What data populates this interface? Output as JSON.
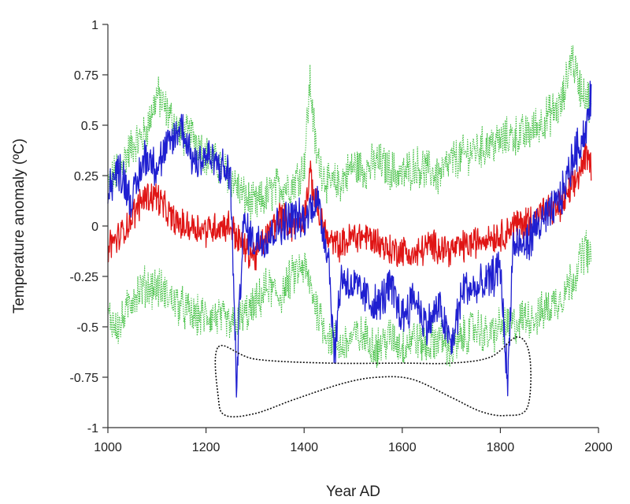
{
  "chart_data": {
    "type": "line",
    "title": "",
    "xlabel": "Year AD",
    "ylabel": "Temperature anomaly (ºC)",
    "xlim": [
      1000,
      2000
    ],
    "ylim": [
      -1,
      1
    ],
    "xticks": [
      1000,
      1200,
      1400,
      1600,
      1800,
      2000
    ],
    "xtick_labels": [
      "1000",
      "1200",
      "1400",
      "1600",
      "1800",
      "2000"
    ],
    "yticks": [
      1,
      0.75,
      0.5,
      0.25,
      0,
      -0.25,
      -0.5,
      -0.75,
      -1
    ],
    "ytick_labels": [
      "1",
      "0.75",
      "0.5",
      "0.25",
      "0",
      "-0.25",
      "-0.5",
      "-0.75",
      "-1"
    ],
    "grid": false,
    "legend": "none",
    "colors": {
      "blue": "#1f1fd0",
      "red": "#e01515",
      "green": "#44c044",
      "outline": "#111111"
    },
    "series": [
      {
        "color": "blue",
        "style": "solid",
        "x": [
          1000,
          1025,
          1050,
          1075,
          1100,
          1125,
          1150,
          1175,
          1200,
          1225,
          1250,
          1262,
          1275,
          1300,
          1325,
          1350,
          1375,
          1400,
          1425,
          1450,
          1462,
          1475,
          1500,
          1525,
          1550,
          1575,
          1600,
          1625,
          1650,
          1675,
          1700,
          1725,
          1750,
          1775,
          1800,
          1815,
          1825,
          1850,
          1875,
          1900,
          1925,
          1950,
          1975,
          1985
        ],
        "y": [
          0.2,
          0.28,
          0.12,
          0.35,
          0.3,
          0.4,
          0.5,
          0.32,
          0.35,
          0.3,
          0.25,
          -0.8,
          0.0,
          -0.08,
          -0.05,
          0.0,
          0.05,
          0.02,
          0.15,
          -0.15,
          -0.65,
          -0.25,
          -0.3,
          -0.35,
          -0.4,
          -0.3,
          -0.45,
          -0.35,
          -0.5,
          -0.4,
          -0.6,
          -0.3,
          -0.32,
          -0.28,
          -0.2,
          -0.8,
          -0.1,
          -0.1,
          0.0,
          0.05,
          0.15,
          0.35,
          0.48,
          0.65
        ]
      },
      {
        "color": "red",
        "style": "solid",
        "x": [
          1000,
          1025,
          1050,
          1075,
          1100,
          1125,
          1150,
          1175,
          1200,
          1225,
          1250,
          1275,
          1300,
          1325,
          1350,
          1375,
          1400,
          1412,
          1425,
          1450,
          1475,
          1500,
          1525,
          1550,
          1575,
          1600,
          1625,
          1650,
          1675,
          1700,
          1725,
          1750,
          1775,
          1800,
          1825,
          1850,
          1875,
          1900,
          1925,
          1950,
          1975,
          1985
        ],
        "y": [
          -0.1,
          -0.05,
          0.05,
          0.15,
          0.15,
          0.05,
          0.0,
          0.0,
          -0.02,
          0.0,
          0.0,
          -0.1,
          -0.15,
          -0.05,
          0.05,
          0.0,
          0.05,
          0.25,
          0.1,
          -0.08,
          -0.1,
          -0.05,
          -0.05,
          -0.08,
          -0.12,
          -0.12,
          -0.15,
          -0.1,
          -0.1,
          -0.12,
          -0.1,
          -0.08,
          -0.05,
          -0.05,
          0.0,
          0.02,
          0.05,
          0.08,
          0.1,
          0.2,
          0.35,
          0.3
        ]
      },
      {
        "color": "green",
        "style": "dotted",
        "x": [
          1000,
          1025,
          1050,
          1075,
          1100,
          1125,
          1150,
          1175,
          1200,
          1225,
          1250,
          1275,
          1300,
          1325,
          1350,
          1375,
          1400,
          1412,
          1425,
          1450,
          1475,
          1500,
          1525,
          1550,
          1575,
          1600,
          1625,
          1650,
          1675,
          1700,
          1725,
          1750,
          1775,
          1800,
          1825,
          1850,
          1875,
          1900,
          1925,
          1945,
          1960,
          1975,
          1985
        ],
        "y": [
          0.2,
          0.3,
          0.4,
          0.45,
          0.65,
          0.55,
          0.45,
          0.45,
          0.35,
          0.3,
          0.25,
          0.15,
          0.1,
          0.15,
          0.2,
          0.2,
          0.3,
          0.72,
          0.35,
          0.2,
          0.22,
          0.3,
          0.28,
          0.32,
          0.28,
          0.25,
          0.3,
          0.28,
          0.25,
          0.32,
          0.35,
          0.38,
          0.4,
          0.42,
          0.45,
          0.45,
          0.5,
          0.55,
          0.6,
          0.85,
          0.7,
          0.65,
          0.6
        ]
      },
      {
        "color": "green",
        "style": "dotted",
        "x": [
          1000,
          1025,
          1050,
          1075,
          1100,
          1125,
          1150,
          1175,
          1200,
          1225,
          1250,
          1275,
          1300,
          1325,
          1350,
          1375,
          1400,
          1425,
          1450,
          1475,
          1500,
          1525,
          1550,
          1575,
          1600,
          1625,
          1650,
          1675,
          1700,
          1725,
          1750,
          1775,
          1800,
          1825,
          1850,
          1875,
          1900,
          1925,
          1950,
          1975,
          1985
        ],
        "y": [
          -0.45,
          -0.5,
          -0.35,
          -0.3,
          -0.3,
          -0.35,
          -0.4,
          -0.45,
          -0.45,
          -0.45,
          -0.5,
          -0.45,
          -0.4,
          -0.3,
          -0.35,
          -0.25,
          -0.2,
          -0.4,
          -0.55,
          -0.6,
          -0.55,
          -0.55,
          -0.6,
          -0.55,
          -0.6,
          -0.55,
          -0.6,
          -0.55,
          -0.62,
          -0.55,
          -0.5,
          -0.55,
          -0.5,
          -0.5,
          -0.45,
          -0.45,
          -0.4,
          -0.35,
          -0.25,
          -0.1,
          -0.2
        ]
      }
    ],
    "annotation_outline": {
      "style": "dotted",
      "points": [
        [
          1225,
          -0.6
        ],
        [
          1300,
          -0.66
        ],
        [
          1450,
          -0.68
        ],
        [
          1600,
          -0.68
        ],
        [
          1700,
          -0.68
        ],
        [
          1780,
          -0.65
        ],
        [
          1835,
          -0.55
        ],
        [
          1860,
          -0.65
        ],
        [
          1855,
          -0.9
        ],
        [
          1810,
          -0.94
        ],
        [
          1760,
          -0.92
        ],
        [
          1700,
          -0.85
        ],
        [
          1620,
          -0.76
        ],
        [
          1550,
          -0.75
        ],
        [
          1480,
          -0.78
        ],
        [
          1380,
          -0.86
        ],
        [
          1300,
          -0.93
        ],
        [
          1240,
          -0.94
        ],
        [
          1225,
          -0.85
        ]
      ]
    }
  }
}
